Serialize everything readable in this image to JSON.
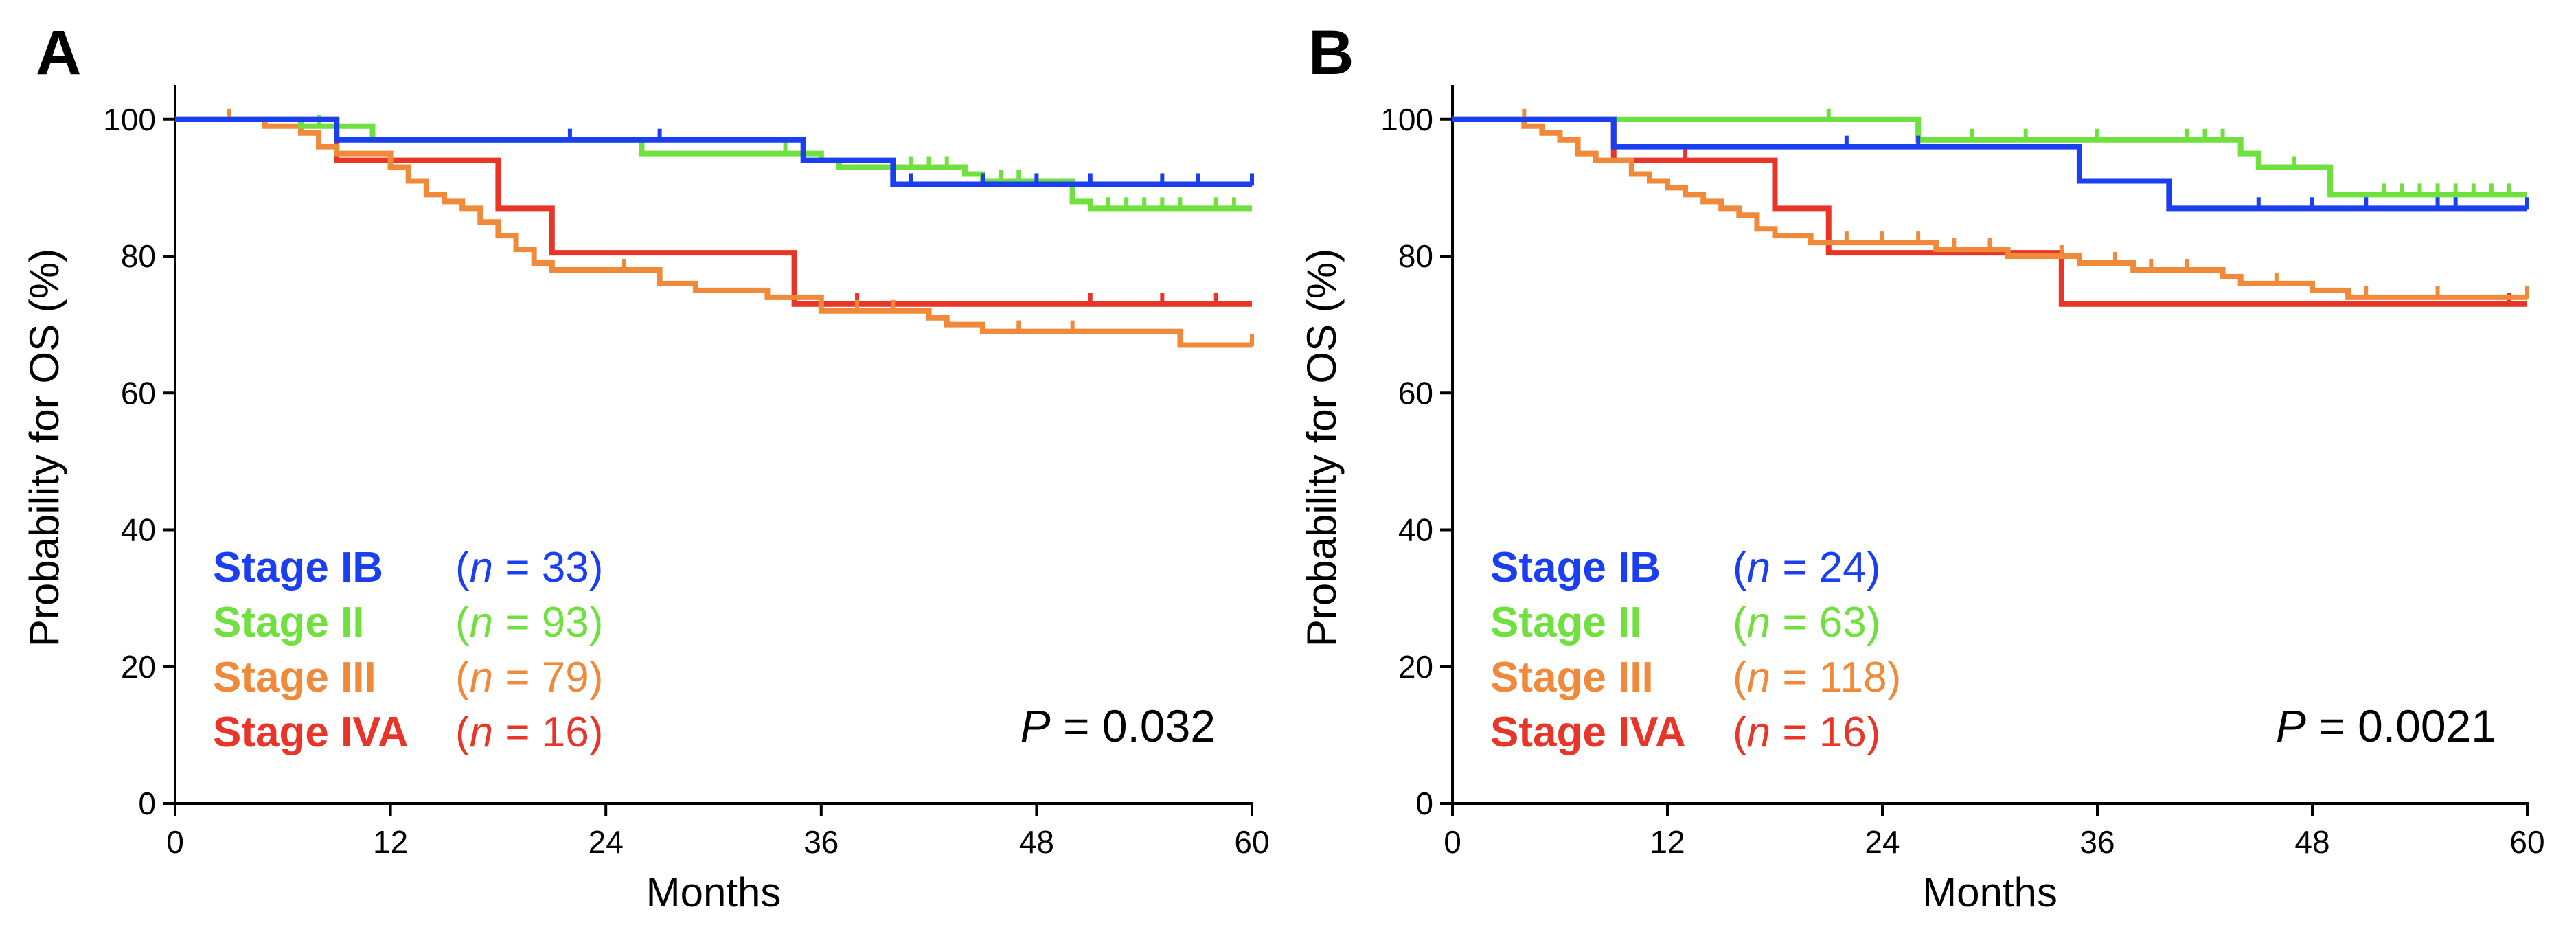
{
  "chart_data": [
    {
      "type": "line",
      "subtype": "kaplan-meier",
      "panel": "A",
      "xlabel": "Months",
      "ylabel": "Probability for OS (%)",
      "xlim": [
        0,
        60
      ],
      "ylim": [
        0,
        105
      ],
      "xticks": [
        0,
        12,
        24,
        36,
        48,
        60
      ],
      "yticks": [
        0,
        20,
        40,
        60,
        80,
        100
      ],
      "p_label": "P",
      "p_value": "= 0.032",
      "series": [
        {
          "name": "Stage IB",
          "n": "(n = 33)",
          "n_pre": "(",
          "n_italic": "n",
          "n_post": " = 33)",
          "color": "#1a3ff0",
          "steps": [
            [
              0,
              100
            ],
            [
              9,
              97
            ],
            [
              35,
              94
            ],
            [
              40,
              90.5
            ],
            [
              60,
              90.5
            ]
          ],
          "censor": [
            [
              22,
              97
            ],
            [
              27,
              97
            ],
            [
              41,
              90.5
            ],
            [
              45,
              90.5
            ],
            [
              48,
              90.5
            ],
            [
              51,
              90.5
            ],
            [
              55,
              90.5
            ],
            [
              57,
              90.5
            ],
            [
              60,
              90.5
            ]
          ]
        },
        {
          "name": "Stage II",
          "n": "(n = 93)",
          "n_pre": "(",
          "n_italic": "n",
          "n_post": " = 93)",
          "color": "#6fe03e",
          "steps": [
            [
              0,
              100
            ],
            [
              7,
              99
            ],
            [
              11,
              97
            ],
            [
              26,
              95
            ],
            [
              36,
              94
            ],
            [
              37,
              93
            ],
            [
              44,
              92
            ],
            [
              45,
              91
            ],
            [
              50,
              88
            ],
            [
              51,
              87
            ],
            [
              60,
              87
            ]
          ],
          "censor": [
            [
              8,
              99
            ],
            [
              34,
              95
            ],
            [
              41,
              93
            ],
            [
              42,
              93
            ],
            [
              43,
              93
            ],
            [
              46,
              91
            ],
            [
              47,
              91
            ],
            [
              52,
              87
            ],
            [
              53,
              87
            ],
            [
              54,
              87
            ],
            [
              55,
              87
            ],
            [
              56,
              87
            ],
            [
              58,
              87
            ],
            [
              59,
              87
            ]
          ]
        },
        {
          "name": "Stage III",
          "n": "(n = 79)",
          "n_pre": "(",
          "n_italic": "n",
          "n_post": " = 79)",
          "color": "#f08a3a",
          "steps": [
            [
              0,
              100
            ],
            [
              5,
              99
            ],
            [
              7,
              98
            ],
            [
              8,
              96
            ],
            [
              9,
              95
            ],
            [
              12,
              93
            ],
            [
              13,
              91
            ],
            [
              14,
              89
            ],
            [
              15,
              88
            ],
            [
              16,
              87
            ],
            [
              17,
              85
            ],
            [
              18,
              83
            ],
            [
              19,
              81
            ],
            [
              20,
              79
            ],
            [
              21,
              78
            ],
            [
              27,
              76
            ],
            [
              29,
              75
            ],
            [
              33,
              74
            ],
            [
              36,
              72
            ],
            [
              42,
              71
            ],
            [
              43,
              70
            ],
            [
              45,
              69
            ],
            [
              56,
              67
            ],
            [
              60,
              67
            ]
          ],
          "censor": [
            [
              3,
              100
            ],
            [
              25,
              78
            ],
            [
              38,
              72
            ],
            [
              40,
              72
            ],
            [
              47,
              69
            ],
            [
              50,
              69
            ],
            [
              60,
              67
            ]
          ]
        },
        {
          "name": "Stage IVA",
          "n": "(n = 16)",
          "n_pre": "(",
          "n_italic": "n",
          "n_post": " = 16)",
          "color": "#e83528",
          "steps": [
            [
              0,
              100
            ],
            [
              9,
              94
            ],
            [
              18,
              87
            ],
            [
              21,
              80.5
            ],
            [
              34.5,
              73
            ],
            [
              60,
              73
            ]
          ],
          "censor": [
            [
              38,
              73
            ],
            [
              51,
              73
            ],
            [
              55,
              73
            ],
            [
              58,
              73
            ]
          ]
        }
      ]
    },
    {
      "type": "line",
      "subtype": "kaplan-meier",
      "panel": "B",
      "xlabel": "Months",
      "ylabel": "Probability for OS (%)",
      "xlim": [
        0,
        60
      ],
      "ylim": [
        0,
        105
      ],
      "xticks": [
        0,
        12,
        24,
        36,
        48,
        60
      ],
      "yticks": [
        0,
        20,
        40,
        60,
        80,
        100
      ],
      "p_label": "P",
      "p_value": "= 0.0021",
      "series": [
        {
          "name": "Stage IB",
          "n": "(n = 24)",
          "n_pre": "(",
          "n_italic": "n",
          "n_post": " = 24)",
          "color": "#1a3ff0",
          "steps": [
            [
              0,
              100
            ],
            [
              9,
              96
            ],
            [
              35,
              91
            ],
            [
              40,
              87
            ],
            [
              60,
              87
            ]
          ],
          "censor": [
            [
              22,
              96
            ],
            [
              26,
              96
            ],
            [
              45,
              87
            ],
            [
              48,
              87
            ],
            [
              51,
              87
            ],
            [
              55,
              87
            ],
            [
              56,
              87
            ],
            [
              60,
              87
            ]
          ]
        },
        {
          "name": "Stage II",
          "n": "(n = 63)",
          "n_pre": "(",
          "n_italic": "n",
          "n_post": " = 63)",
          "color": "#6fe03e",
          "steps": [
            [
              0,
              100
            ],
            [
              26,
              97
            ],
            [
              44,
              95
            ],
            [
              45,
              93
            ],
            [
              49,
              89
            ],
            [
              60,
              89
            ]
          ],
          "censor": [
            [
              21,
              100
            ],
            [
              29,
              97
            ],
            [
              32,
              97
            ],
            [
              36,
              97
            ],
            [
              41,
              97
            ],
            [
              42,
              97
            ],
            [
              43,
              97
            ],
            [
              47,
              93
            ],
            [
              52,
              89
            ],
            [
              53,
              89
            ],
            [
              54,
              89
            ],
            [
              55,
              89
            ],
            [
              56,
              89
            ],
            [
              57,
              89
            ],
            [
              58,
              89
            ],
            [
              59,
              89
            ]
          ]
        },
        {
          "name": "Stage III",
          "n": "(n = 118)",
          "n_pre": "(",
          "n_italic": "n",
          "n_post": " = 118)",
          "color": "#f08a3a",
          "steps": [
            [
              0,
              100
            ],
            [
              4,
              99
            ],
            [
              5,
              98
            ],
            [
              6,
              97
            ],
            [
              7,
              95
            ],
            [
              8,
              94
            ],
            [
              10,
              92
            ],
            [
              11,
              91
            ],
            [
              12,
              90
            ],
            [
              13,
              89
            ],
            [
              14,
              88
            ],
            [
              15,
              87
            ],
            [
              16,
              86
            ],
            [
              17,
              84
            ],
            [
              18,
              83
            ],
            [
              20,
              82
            ],
            [
              27,
              81
            ],
            [
              31,
              80
            ],
            [
              35,
              79
            ],
            [
              38,
              78
            ],
            [
              43,
              77
            ],
            [
              44,
              76
            ],
            [
              48,
              75
            ],
            [
              50,
              74
            ],
            [
              60,
              74
            ]
          ],
          "censor": [
            [
              4,
              100
            ],
            [
              22,
              82
            ],
            [
              24,
              82
            ],
            [
              26,
              82
            ],
            [
              28,
              81
            ],
            [
              30,
              81
            ],
            [
              34,
              80
            ],
            [
              37,
              79
            ],
            [
              39,
              78
            ],
            [
              41,
              78
            ],
            [
              46,
              76
            ],
            [
              51,
              74
            ],
            [
              55,
              74
            ],
            [
              60,
              74
            ]
          ]
        },
        {
          "name": "Stage IVA",
          "n": "(n = 16)",
          "n_pre": "(",
          "n_italic": "n",
          "n_post": " = 16)",
          "color": "#e83528",
          "steps": [
            [
              0,
              100
            ],
            [
              9,
              94
            ],
            [
              18,
              87
            ],
            [
              21,
              80.5
            ],
            [
              34,
              73
            ],
            [
              60,
              73
            ]
          ],
          "censor": [
            [
              13,
              94
            ],
            [
              59,
              73
            ]
          ]
        }
      ]
    }
  ]
}
